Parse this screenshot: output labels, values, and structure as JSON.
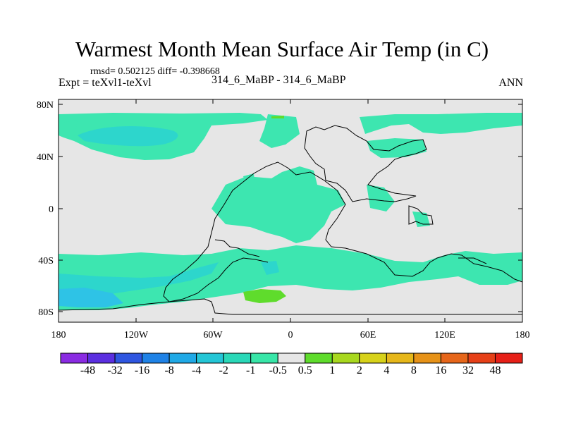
{
  "title": "Warmest Month Mean Surface Air Temp (in C)",
  "stats": "rmsd= 0.502125 diff= -0.398668",
  "experiment": "Expt = teXvl1-teXvl",
  "comparison": "314_6_MaBP - 314_6_MaBP",
  "period": "ANN",
  "lat_ticks": [
    "80N",
    "40N",
    "0",
    "40S",
    "80S"
  ],
  "lon_ticks": [
    "180",
    "120W",
    "60W",
    "0",
    "60E",
    "120E",
    "180"
  ],
  "colorbar": {
    "labels": [
      "-48",
      "-32",
      "-16",
      "-8",
      "-4",
      "-2",
      "-1",
      "-0.5",
      "0.5",
      "1",
      "2",
      "4",
      "8",
      "16",
      "32",
      "48"
    ],
    "colors": [
      "#8a2be2",
      "#5b2fe0",
      "#2f56e0",
      "#1f82e6",
      "#20a9e6",
      "#24c6d6",
      "#2ad8b8",
      "#38e6a8",
      "#e6e6e6",
      "#5fdc2c",
      "#a8d81f",
      "#d7d21a",
      "#e6b71a",
      "#e69218",
      "#e6661a",
      "#e64018",
      "#e62018"
    ]
  },
  "map": {
    "background": "#e6e6e6",
    "fill_light": "#3de6b0",
    "fill_mid": "#2dd6cc",
    "fill_dark": "#2ec3e6",
    "fill_positive": "#5fdc2c"
  }
}
